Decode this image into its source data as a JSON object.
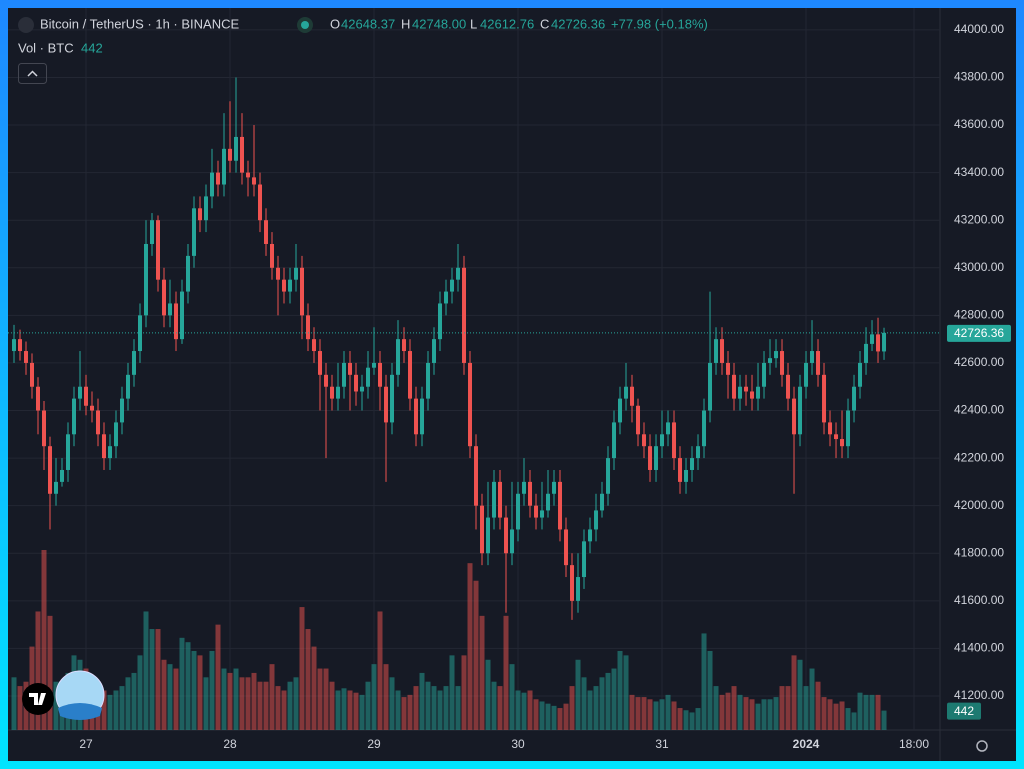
{
  "chart_data": {
    "type": "candlestick",
    "legend": {
      "symbol": "Bitcoin / TetherUS · 1h · BINANCE",
      "open_label": "O",
      "open": "42648.37",
      "high_label": "H",
      "high": "42748.00",
      "low_label": "L",
      "low": "42612.76",
      "close_label": "C",
      "close": "42726.36",
      "change": "+77.98 (+0.18%)",
      "volume_label": "Vol · BTC",
      "volume": "442"
    },
    "up_color": "#26a69a",
    "down_color": "#ef5350",
    "volume_up_color": "rgba(38,166,154,0.5)",
    "volume_down_color": "rgba(239,83,80,0.5)",
    "grid": true,
    "xlim": [
      -1,
      154.33
    ],
    "xticks": [
      {
        "value": 12,
        "label": "27"
      },
      {
        "value": 36,
        "label": "28"
      },
      {
        "value": 60,
        "label": "29"
      },
      {
        "value": 84,
        "label": "30"
      },
      {
        "value": 108,
        "label": "31"
      },
      {
        "value": 132,
        "label": "2024"
      },
      {
        "value": 150,
        "label": "18:00"
      }
    ],
    "ylim": [
      41057,
      44092
    ],
    "yticks": [
      {
        "value": 41200,
        "label": "41200.00"
      },
      {
        "value": 41400,
        "label": "41400.00"
      },
      {
        "value": 41600,
        "label": "41600.00"
      },
      {
        "value": 41800,
        "label": "41800.00"
      },
      {
        "value": 42000,
        "label": "42000.00"
      },
      {
        "value": 42200,
        "label": "42200.00"
      },
      {
        "value": 42400,
        "label": "42400.00"
      },
      {
        "value": 42600,
        "label": "42600.00"
      },
      {
        "value": 42800,
        "label": "42800.00"
      },
      {
        "value": 43000,
        "label": "43000.00"
      },
      {
        "value": 43200,
        "label": "43200.00"
      },
      {
        "value": 43400,
        "label": "43400.00"
      },
      {
        "value": 43600,
        "label": "43600.00"
      },
      {
        "value": 43800,
        "label": "43800.00"
      },
      {
        "value": 44000,
        "label": "44000.00"
      }
    ],
    "open": [
      42650,
      42700,
      42650,
      42600,
      42500,
      42400,
      42250,
      42050,
      42100,
      42150,
      42300,
      42450,
      42500,
      42420,
      42400,
      42300,
      42200,
      42250,
      42350,
      42450,
      42550,
      42650,
      42800,
      43100,
      43200,
      42950,
      42800,
      42850,
      42700,
      42900,
      43050,
      43250,
      43200,
      43300,
      43400,
      43350,
      43500,
      43450,
      43550,
      43400,
      43380,
      43350,
      43200,
      43100,
      43000,
      42950,
      42900,
      42950,
      43000,
      42800,
      42700,
      42650,
      42550,
      42500,
      42450,
      42500,
      42600,
      42550,
      42480,
      42500,
      42580,
      42600,
      42500,
      42350,
      42550,
      42700,
      42650,
      42450,
      42300,
      42450,
      42600,
      42700,
      42850,
      42900,
      42950,
      43000,
      42600,
      42250,
      42000,
      41800,
      41950,
      42100,
      41950,
      41800,
      41900,
      42050,
      42100,
      42000,
      41950,
      41980,
      42050,
      42100,
      41900,
      41750,
      41600,
      41700,
      41850,
      41900,
      41980,
      42050,
      42200,
      42350,
      42450,
      42500,
      42420,
      42300,
      42250,
      42150,
      42250,
      42300,
      42350,
      42200,
      42100,
      42150,
      42200,
      42250,
      42400,
      42600,
      42700,
      42600,
      42550,
      42450,
      42500,
      42480,
      42450,
      42500,
      42600,
      42620,
      42650,
      42550,
      42450,
      42300,
      42500,
      42600,
      42650,
      42550,
      42350,
      42300,
      42280,
      42250,
      42400,
      42500,
      42600,
      42680,
      42720,
      42648.37
    ],
    "high": [
      42760,
      42740,
      42690,
      42640,
      42540,
      42440,
      42290,
      42200,
      42200,
      42350,
      42500,
      42650,
      42550,
      42480,
      42450,
      42350,
      42300,
      42400,
      42500,
      42600,
      42700,
      42850,
      43200,
      43230,
      43220,
      43000,
      42950,
      42900,
      42950,
      43100,
      43300,
      43300,
      43350,
      43500,
      43450,
      43650,
      43700,
      43800,
      43650,
      43450,
      43600,
      43400,
      43250,
      43150,
      43050,
      43000,
      43000,
      43100,
      43050,
      42850,
      42750,
      42700,
      42600,
      42550,
      42600,
      42650,
      42650,
      42600,
      42550,
      42650,
      42750,
      42650,
      42550,
      42600,
      42780,
      42750,
      42700,
      42500,
      42500,
      42650,
      42750,
      42900,
      42950,
      43000,
      43100,
      43050,
      42650,
      42300,
      42050,
      42100,
      42150,
      42150,
      42000,
      42100,
      42100,
      42200,
      42150,
      42050,
      42100,
      42150,
      42150,
      42150,
      41950,
      41800,
      41800,
      41900,
      41950,
      42050,
      42100,
      42250,
      42400,
      42500,
      42600,
      42550,
      42450,
      42350,
      42300,
      42300,
      42400,
      42400,
      42400,
      42250,
      42200,
      42250,
      42300,
      42450,
      42900,
      42750,
      42750,
      42650,
      42600,
      42550,
      42550,
      42550,
      42600,
      42650,
      42700,
      42700,
      42700,
      42600,
      42500,
      42550,
      42650,
      42780,
      42700,
      42600,
      42400,
      42350,
      42400,
      42450,
      42550,
      42650,
      42750,
      42780,
      42790,
      42748
    ],
    "low": [
      42600,
      42610,
      42550,
      42450,
      42300,
      42150,
      41900,
      42000,
      42080,
      42100,
      42250,
      42400,
      42380,
      42350,
      42250,
      42150,
      42150,
      42200,
      42300,
      42400,
      42500,
      42600,
      42750,
      43050,
      42900,
      42750,
      42750,
      42650,
      42680,
      42850,
      43000,
      43150,
      43150,
      43250,
      43300,
      43300,
      43400,
      43400,
      43350,
      43300,
      43300,
      43150,
      43050,
      42950,
      42800,
      42850,
      42850,
      42900,
      42700,
      42650,
      42600,
      42400,
      42200,
      42400,
      42400,
      42450,
      42400,
      42420,
      42400,
      42450,
      42550,
      42400,
      42100,
      42300,
      42500,
      42600,
      42400,
      42250,
      42250,
      42400,
      42550,
      42650,
      42800,
      42850,
      42900,
      42550,
      42200,
      41900,
      41750,
      41750,
      41900,
      41900,
      41550,
      41750,
      41850,
      42000,
      41950,
      41900,
      41900,
      41950,
      42000,
      41850,
      41700,
      41520,
      41550,
      41650,
      41800,
      41850,
      41950,
      42000,
      42150,
      42300,
      42400,
      42350,
      42250,
      42200,
      42100,
      42100,
      42200,
      42250,
      42150,
      42050,
      42050,
      42100,
      42150,
      42200,
      42350,
      42550,
      42550,
      42450,
      42400,
      42400,
      42420,
      42400,
      42400,
      42450,
      42550,
      42580,
      42500,
      42400,
      42050,
      42250,
      42450,
      42550,
      42500,
      42300,
      42250,
      42200,
      42200,
      42200,
      42350,
      42450,
      42550,
      42650,
      42600,
      42612.76
    ],
    "close": [
      42700,
      42650,
      42600,
      42500,
      42400,
      42250,
      42050,
      42100,
      42150,
      42300,
      42450,
      42500,
      42420,
      42400,
      42300,
      42200,
      42250,
      42350,
      42450,
      42550,
      42650,
      42800,
      43100,
      43200,
      42950,
      42800,
      42850,
      42700,
      42900,
      43050,
      43250,
      43200,
      43300,
      43400,
      43350,
      43500,
      43450,
      43550,
      43400,
      43380,
      43350,
      43200,
      43100,
      43000,
      42950,
      42900,
      42950,
      43000,
      42800,
      42700,
      42650,
      42550,
      42500,
      42450,
      42500,
      42600,
      42550,
      42480,
      42500,
      42580,
      42600,
      42500,
      42350,
      42550,
      42700,
      42650,
      42450,
      42300,
      42450,
      42600,
      42700,
      42850,
      42900,
      42950,
      43000,
      42600,
      42250,
      42000,
      41800,
      41950,
      42100,
      41950,
      41800,
      41900,
      42050,
      42100,
      42000,
      41950,
      41980,
      42050,
      42100,
      41900,
      41750,
      41600,
      41700,
      41850,
      41900,
      41980,
      42050,
      42200,
      42350,
      42450,
      42500,
      42420,
      42300,
      42250,
      42150,
      42250,
      42300,
      42350,
      42200,
      42100,
      42150,
      42200,
      42250,
      42400,
      42600,
      42700,
      42600,
      42550,
      42450,
      42500,
      42480,
      42450,
      42500,
      42600,
      42620,
      42650,
      42550,
      42450,
      42300,
      42500,
      42600,
      42650,
      42550,
      42350,
      42300,
      42280,
      42250,
      42400,
      42500,
      42600,
      42680,
      42720,
      42648.37,
      42726.36
    ],
    "volume": [
      1200,
      1000,
      1100,
      1900,
      2700,
      4100,
      2600,
      1100,
      1000,
      1300,
      1700,
      1600,
      1400,
      1100,
      1000,
      900,
      800,
      900,
      1000,
      1200,
      1300,
      1700,
      2700,
      2300,
      2300,
      1600,
      1500,
      1400,
      2100,
      2000,
      1800,
      1700,
      1200,
      1800,
      2400,
      1400,
      1300,
      1400,
      1200,
      1200,
      1300,
      1100,
      1100,
      1500,
      1000,
      900,
      1100,
      1200,
      2800,
      2300,
      1900,
      1400,
      1400,
      1100,
      900,
      950,
      900,
      850,
      800,
      1100,
      1500,
      2700,
      1500,
      1200,
      900,
      750,
      800,
      1000,
      1300,
      1100,
      1000,
      900,
      1000,
      1700,
      1000,
      1700,
      3800,
      3400,
      2600,
      1600,
      1100,
      1000,
      2600,
      1500,
      900,
      850,
      900,
      700,
      650,
      600,
      550,
      500,
      600,
      1000,
      1600,
      1200,
      900,
      1000,
      1200,
      1300,
      1400,
      1800,
      1700,
      800,
      750,
      750,
      700,
      650,
      700,
      800,
      650,
      500,
      450,
      400,
      500,
      2200,
      1800,
      1000,
      800,
      850,
      1000,
      800,
      750,
      700,
      600,
      700,
      700,
      750,
      1000,
      1000,
      1700,
      1600,
      1000,
      1400,
      1100,
      750,
      700,
      600,
      650,
      500,
      400,
      850,
      800,
      800,
      800,
      442
    ]
  }
}
